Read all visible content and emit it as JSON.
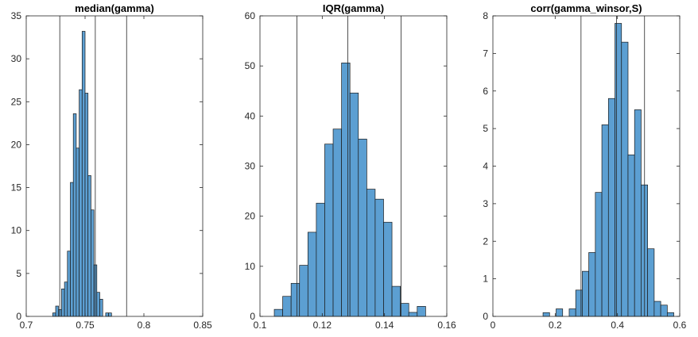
{
  "chart_data": [
    {
      "type": "bar",
      "title": "median(gamma)",
      "xlim": [
        0.7,
        0.85
      ],
      "ylim": [
        0,
        35
      ],
      "xticks": [
        "0.7",
        "0.75",
        "0.8",
        "0.85"
      ],
      "yticks": [
        "0",
        "5",
        "10",
        "15",
        "20",
        "25",
        "30",
        "35"
      ],
      "bins": [
        [
          0.7225,
          0.725,
          0.4
        ],
        [
          0.725,
          0.7275,
          1.2
        ],
        [
          0.7275,
          0.73,
          0.8
        ],
        [
          0.73,
          0.7325,
          3.2
        ],
        [
          0.7325,
          0.735,
          4.0
        ],
        [
          0.735,
          0.7375,
          7.6
        ],
        [
          0.7375,
          0.74,
          15.6
        ],
        [
          0.74,
          0.7425,
          23.6
        ],
        [
          0.7425,
          0.745,
          19.6
        ],
        [
          0.745,
          0.7475,
          26.4
        ],
        [
          0.7475,
          0.75,
          33.2
        ],
        [
          0.75,
          0.7525,
          26.0
        ],
        [
          0.7525,
          0.755,
          16.4
        ],
        [
          0.755,
          0.7575,
          12.4
        ],
        [
          0.7575,
          0.76,
          6.0
        ],
        [
          0.76,
          0.7625,
          2.8
        ],
        [
          0.7625,
          0.765,
          2.0
        ],
        [
          0.765,
          0.7675,
          0.0
        ],
        [
          0.7675,
          0.77,
          0.4
        ],
        [
          0.77,
          0.7725,
          0.4
        ]
      ],
      "vlines": [
        0.7285,
        0.7587,
        0.7853
      ]
    },
    {
      "type": "bar",
      "title": "IQR(gamma)",
      "xlim": [
        0.1,
        0.16
      ],
      "ylim": [
        0,
        60
      ],
      "xticks": [
        "0.1",
        "0.12",
        "0.14",
        "0.16"
      ],
      "yticks": [
        "0",
        "10",
        "20",
        "30",
        "40",
        "50",
        "60"
      ],
      "bins": [
        [
          0.1046,
          0.1073,
          1.4
        ],
        [
          0.1073,
          0.11,
          4.0
        ],
        [
          0.11,
          0.1127,
          6.6
        ],
        [
          0.1127,
          0.1154,
          10.2
        ],
        [
          0.1154,
          0.1181,
          16.8
        ],
        [
          0.1181,
          0.1208,
          22.6
        ],
        [
          0.1208,
          0.1235,
          34.4
        ],
        [
          0.1235,
          0.1262,
          37.4
        ],
        [
          0.1262,
          0.1289,
          50.6
        ],
        [
          0.1289,
          0.1316,
          44.6
        ],
        [
          0.1316,
          0.1343,
          35.4
        ],
        [
          0.1343,
          0.137,
          25.4
        ],
        [
          0.137,
          0.1397,
          23.4
        ],
        [
          0.1397,
          0.1424,
          18.8
        ],
        [
          0.1424,
          0.1451,
          6.0
        ],
        [
          0.1451,
          0.1478,
          2.6
        ],
        [
          0.1478,
          0.1505,
          0.8
        ],
        [
          0.1505,
          0.1532,
          2.0
        ]
      ],
      "vlines": [
        0.1119,
        0.1282,
        0.1453
      ]
    },
    {
      "type": "bar",
      "title": "corr(gamma_winsor,S)",
      "xlim": [
        0,
        0.6
      ],
      "ylim": [
        0,
        8
      ],
      "xticks": [
        "0",
        "0.2",
        "0.4",
        "0.6"
      ],
      "yticks": [
        "0",
        "1",
        "2",
        "3",
        "4",
        "5",
        "6",
        "7",
        "8"
      ],
      "bins": [
        [
          0.161,
          0.182,
          0.1
        ],
        [
          0.182,
          0.203,
          0.0
        ],
        [
          0.203,
          0.224,
          0.2
        ],
        [
          0.224,
          0.245,
          0.0
        ],
        [
          0.245,
          0.266,
          0.2
        ],
        [
          0.266,
          0.287,
          0.7
        ],
        [
          0.287,
          0.308,
          1.2
        ],
        [
          0.308,
          0.329,
          1.7
        ],
        [
          0.329,
          0.35,
          3.3
        ],
        [
          0.35,
          0.371,
          5.1
        ],
        [
          0.371,
          0.392,
          5.8
        ],
        [
          0.392,
          0.413,
          7.8
        ],
        [
          0.413,
          0.434,
          7.3
        ],
        [
          0.434,
          0.455,
          4.3
        ],
        [
          0.455,
          0.476,
          5.5
        ],
        [
          0.476,
          0.497,
          3.5
        ],
        [
          0.497,
          0.518,
          1.8
        ],
        [
          0.518,
          0.539,
          0.4
        ],
        [
          0.539,
          0.56,
          0.3
        ],
        [
          0.56,
          0.581,
          0.1
        ]
      ],
      "vlines": [
        0.283,
        0.397,
        0.487
      ]
    }
  ],
  "style": {
    "bar_fill": "#5c9fd2",
    "bar_edge": "#1a1a1a",
    "axis_color": "#262626",
    "vline_color": "#262626"
  }
}
